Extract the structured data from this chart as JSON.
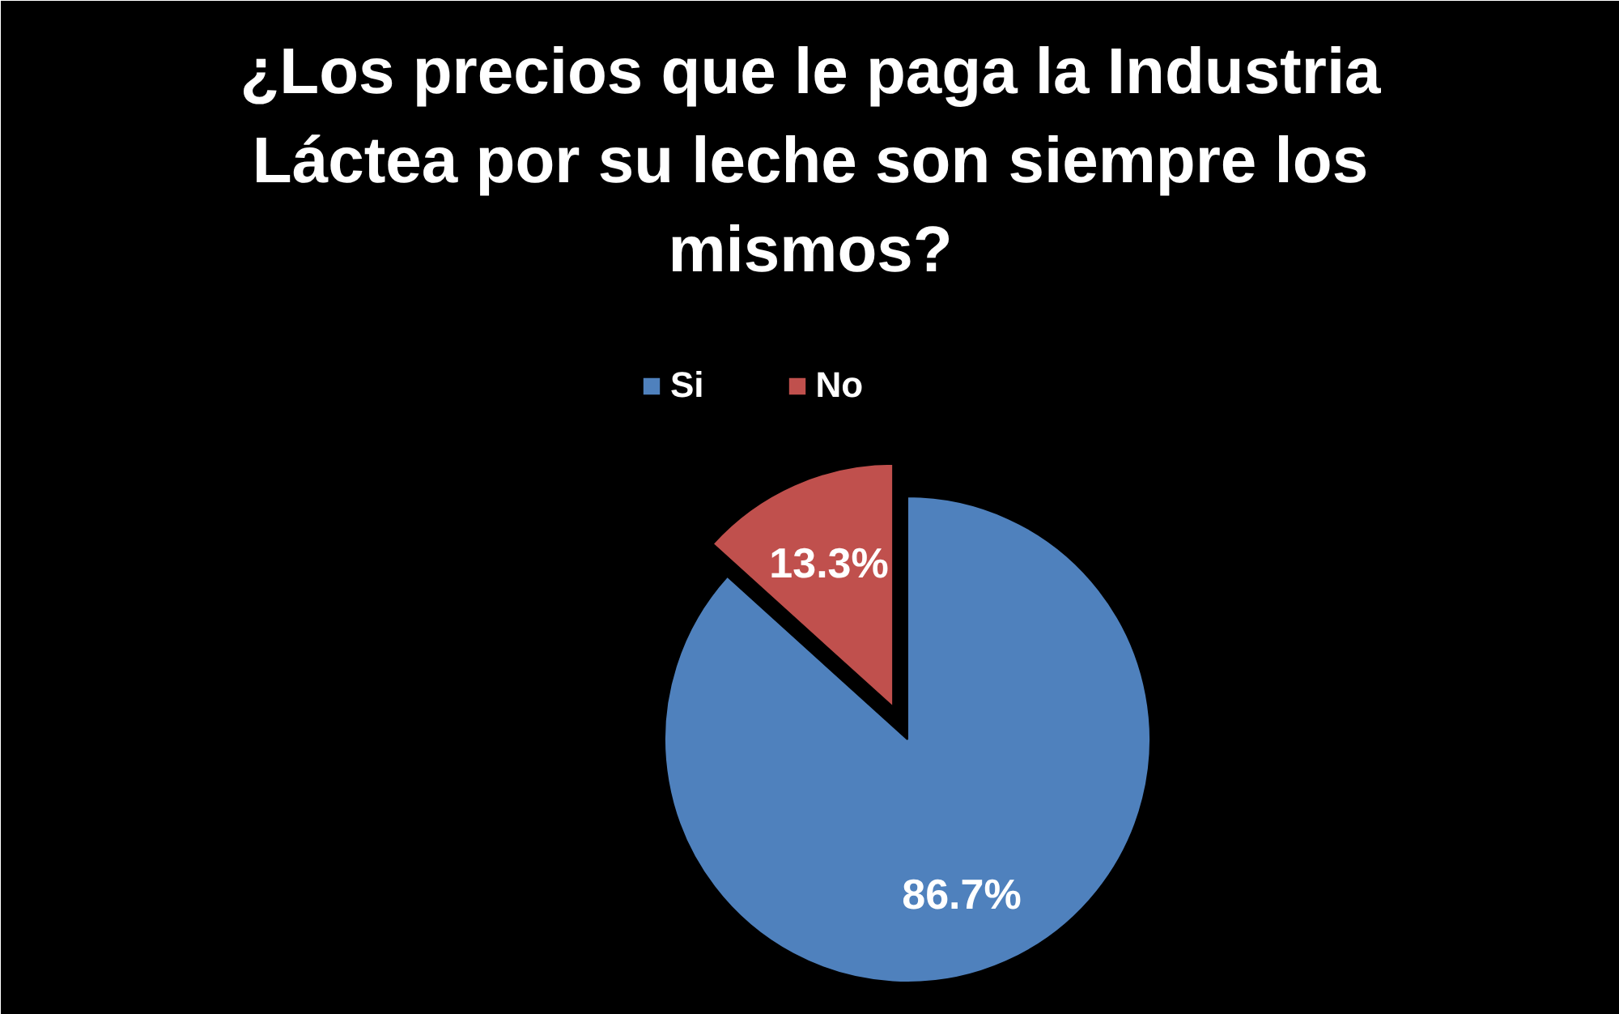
{
  "chart_data": {
    "type": "pie",
    "title": "¿Los precios que le paga la Industria Láctea por su leche son siempre los mismos?",
    "categories": [
      "Si",
      "No"
    ],
    "values": [
      86.7,
      13.3
    ],
    "colors": [
      "#4f81bd",
      "#c0504d"
    ],
    "value_labels": [
      "86.7%",
      "13.3%"
    ],
    "legend": "top"
  }
}
